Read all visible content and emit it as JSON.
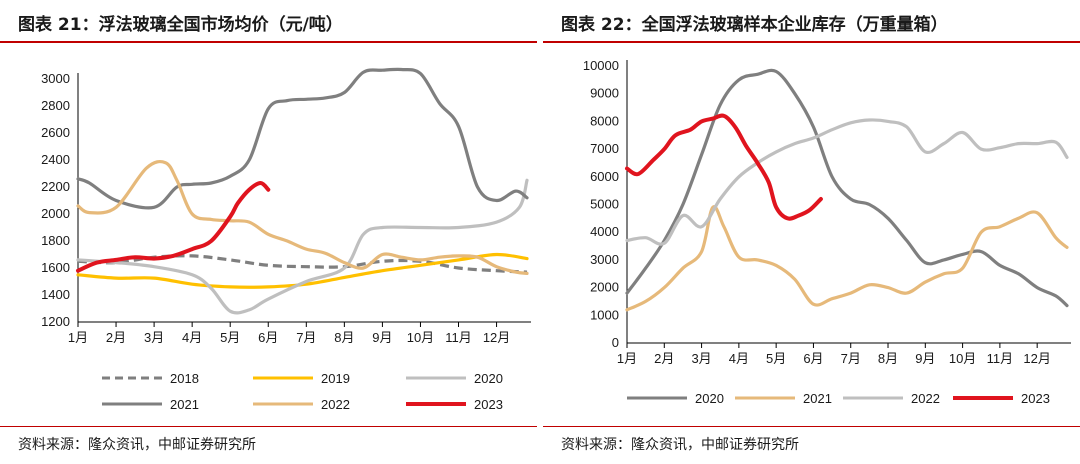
{
  "chart_data": [
    {
      "type": "line",
      "title": "图表 21：浮法玻璃全国市场均价（元/吨）",
      "source": "资料来源：隆众资讯，中邮证券研究所",
      "categories": [
        "1月",
        "2月",
        "3月",
        "4月",
        "5月",
        "6月",
        "7月",
        "8月",
        "9月",
        "10月",
        "11月",
        "12月"
      ],
      "ylim": [
        1200,
        3000
      ],
      "yticks": [
        1200,
        1400,
        1600,
        1800,
        2000,
        2200,
        2400,
        2600,
        2800,
        3000
      ],
      "legend_placement": "bottom",
      "series": [
        {
          "name": "2018",
          "color": "#7f7f7f",
          "dashed": true,
          "x": [
            1,
            2,
            3,
            4,
            5,
            6,
            7,
            8,
            9,
            10,
            11,
            12,
            12.8
          ],
          "values": [
            1650,
            1640,
            1680,
            1690,
            1660,
            1620,
            1610,
            1610,
            1650,
            1650,
            1600,
            1580,
            1570
          ]
        },
        {
          "name": "2019",
          "color": "#ffc000",
          "x": [
            1,
            2,
            3,
            4,
            5,
            6,
            7,
            8,
            9,
            10,
            11,
            12,
            12.8
          ],
          "values": [
            1550,
            1525,
            1525,
            1480,
            1460,
            1460,
            1480,
            1530,
            1580,
            1620,
            1660,
            1700,
            1670
          ]
        },
        {
          "name": "2020",
          "color": "#bfbfbf",
          "x": [
            1,
            2,
            3,
            4,
            4.5,
            5,
            5.5,
            6,
            7,
            8,
            8.5,
            9,
            10,
            11,
            12,
            12.6,
            12.8
          ],
          "values": [
            1660,
            1640,
            1610,
            1550,
            1450,
            1280,
            1290,
            1370,
            1500,
            1600,
            1850,
            1900,
            1900,
            1900,
            1940,
            2050,
            2250
          ]
        },
        {
          "name": "2021",
          "color": "#7f7f7f",
          "x": [
            1,
            1.3,
            2,
            3,
            3.6,
            4,
            4.5,
            5,
            5.5,
            6,
            6.5,
            7,
            7.5,
            8,
            8.5,
            9,
            9.5,
            10,
            10.5,
            11,
            11.5,
            12,
            12.5,
            12.8
          ],
          "values": [
            2260,
            2230,
            2100,
            2050,
            2200,
            2220,
            2230,
            2280,
            2400,
            2780,
            2840,
            2850,
            2860,
            2900,
            3050,
            3065,
            3070,
            3040,
            2820,
            2650,
            2200,
            2100,
            2170,
            2120
          ]
        },
        {
          "name": "2022",
          "color": "#e6b97a",
          "x": [
            1,
            1.3,
            2,
            2.8,
            3.3,
            3.6,
            4,
            4.5,
            5,
            5.5,
            6,
            6.5,
            7,
            7.5,
            8,
            8.5,
            9,
            9.5,
            10,
            10.5,
            11,
            11.5,
            12,
            12.5,
            12.8
          ],
          "values": [
            2060,
            2010,
            2050,
            2340,
            2380,
            2250,
            2000,
            1960,
            1950,
            1940,
            1850,
            1800,
            1740,
            1710,
            1640,
            1600,
            1700,
            1680,
            1660,
            1680,
            1690,
            1680,
            1610,
            1570,
            1560
          ]
        },
        {
          "name": "2023",
          "color": "#e0141e",
          "bold": true,
          "x": [
            1,
            1.5,
            2,
            2.5,
            3,
            3.5,
            4,
            4.5,
            5,
            5.2,
            5.5,
            5.8,
            6
          ],
          "values": [
            1580,
            1640,
            1660,
            1680,
            1670,
            1690,
            1740,
            1800,
            1980,
            2080,
            2180,
            2230,
            2180
          ]
        }
      ]
    },
    {
      "type": "line",
      "title": "图表 22：全国浮法玻璃样本企业库存（万重量箱）",
      "source": "资料来源：隆众资讯，中邮证券研究所",
      "categories": [
        "1月",
        "2月",
        "3月",
        "4月",
        "5月",
        "6月",
        "7月",
        "8月",
        "9月",
        "10月",
        "11月",
        "12月"
      ],
      "ylim": [
        0,
        10000
      ],
      "yticks": [
        0,
        1000,
        2000,
        3000,
        4000,
        5000,
        6000,
        7000,
        8000,
        9000,
        10000
      ],
      "legend_placement": "bottom",
      "series": [
        {
          "name": "2020",
          "color": "#7f7f7f",
          "x": [
            1,
            1.5,
            2,
            2.5,
            3,
            3.5,
            4,
            4.5,
            5,
            5.5,
            6,
            6.5,
            7,
            7.5,
            8,
            8.5,
            9,
            9.5,
            10,
            10.5,
            11,
            11.5,
            12,
            12.5,
            12.8
          ],
          "values": [
            1800,
            2700,
            3700,
            5000,
            6800,
            8600,
            9500,
            9700,
            9800,
            9000,
            7800,
            6000,
            5200,
            5000,
            4500,
            3700,
            2900,
            3000,
            3200,
            3300,
            2800,
            2500,
            2000,
            1700,
            1350
          ]
        },
        {
          "name": "2021",
          "color": "#e6b97a",
          "x": [
            1,
            1.5,
            2,
            2.5,
            3,
            3.3,
            3.6,
            4,
            4.5,
            5,
            5.5,
            6,
            6.5,
            7,
            7.5,
            8,
            8.5,
            9,
            9.5,
            10,
            10.5,
            11,
            11.5,
            12,
            12.5,
            12.8
          ],
          "values": [
            1200,
            1500,
            2000,
            2700,
            3300,
            4900,
            4200,
            3100,
            3000,
            2800,
            2300,
            1400,
            1600,
            1800,
            2100,
            2000,
            1800,
            2200,
            2500,
            2700,
            4000,
            4200,
            4500,
            4700,
            3800,
            3450
          ]
        },
        {
          "name": "2022",
          "color": "#bfbfbf",
          "x": [
            1,
            1.5,
            2,
            2.5,
            3,
            3.5,
            4,
            4.5,
            5,
            5.5,
            6,
            6.5,
            7,
            7.5,
            8,
            8.5,
            9,
            9.5,
            10,
            10.5,
            11,
            11.5,
            12,
            12.5,
            12.8
          ],
          "values": [
            3700,
            3800,
            3600,
            4600,
            4200,
            5200,
            6000,
            6500,
            6900,
            7200,
            7400,
            7700,
            7950,
            8050,
            8000,
            7800,
            6900,
            7200,
            7600,
            7000,
            7050,
            7200,
            7200,
            7250,
            6700
          ]
        },
        {
          "name": "2023",
          "color": "#e0141e",
          "bold": true,
          "x": [
            1,
            1.3,
            1.7,
            2,
            2.3,
            2.7,
            3,
            3.3,
            3.6,
            3.9,
            4.2,
            4.5,
            4.8,
            5,
            5.3,
            5.6,
            5.9,
            6.2
          ],
          "values": [
            6300,
            6100,
            6600,
            7000,
            7500,
            7700,
            8000,
            8100,
            8200,
            7800,
            7100,
            6500,
            5800,
            4900,
            4500,
            4600,
            4800,
            5200
          ]
        }
      ]
    }
  ]
}
